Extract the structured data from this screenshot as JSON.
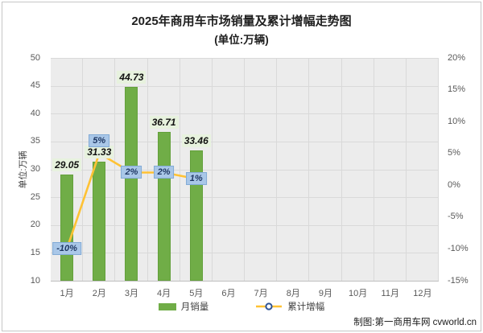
{
  "chart": {
    "title": "2025年商用车市场销量及累计增幅走势图",
    "subtitle": "(单位:万辆)",
    "y_axis_title": "单位:万辆"
  },
  "legend": {
    "sales_label": "月销量",
    "growth_label": "累计增幅"
  },
  "footer": "制图:第一商用车网 cvworld.cn",
  "colors": {
    "bar": "#70AD47",
    "bar_border": "#63A03B",
    "bar_label_bg": "#E7F2DE",
    "line": "#FFC234",
    "marker_ring": "#2F5597",
    "marker_fill": "#FFFFFF",
    "pct_bg": "#A9C7E8",
    "pct_border": "#82ABD6",
    "pct_text": "#1F3864",
    "plot_bg": "#ECECEC",
    "grid": "#D9D9D9",
    "tick_text": "#595959"
  },
  "chart_data": {
    "type": "bar+line",
    "title": "2025年商用车市场销量及累计增幅走势图 (单位:万辆)",
    "categories": [
      "1月",
      "2月",
      "3月",
      "4月",
      "5月",
      "6月",
      "7月",
      "8月",
      "9月",
      "10月",
      "11月",
      "12月"
    ],
    "series": [
      {
        "name": "月销量",
        "type": "bar",
        "axis": "left",
        "values": [
          29.05,
          31.33,
          44.73,
          36.71,
          33.46
        ],
        "labels": [
          "29.05",
          "31.33",
          "44.73",
          "36.71",
          "33.46"
        ]
      },
      {
        "name": "累计增幅",
        "type": "line",
        "axis": "right",
        "values": [
          -10,
          5,
          2,
          2,
          1
        ],
        "labels": [
          "-10%",
          "5%",
          "2%",
          "2%",
          "1%"
        ],
        "label_dy": [
          0,
          -16,
          0,
          0,
          0
        ]
      }
    ],
    "left_axis": {
      "label": "单位:万辆",
      "min": 10,
      "max": 50,
      "step": 5
    },
    "right_axis": {
      "min": -15,
      "max": 20,
      "step": 5,
      "format": "percent"
    },
    "grid": true,
    "legend_position": "bottom"
  }
}
